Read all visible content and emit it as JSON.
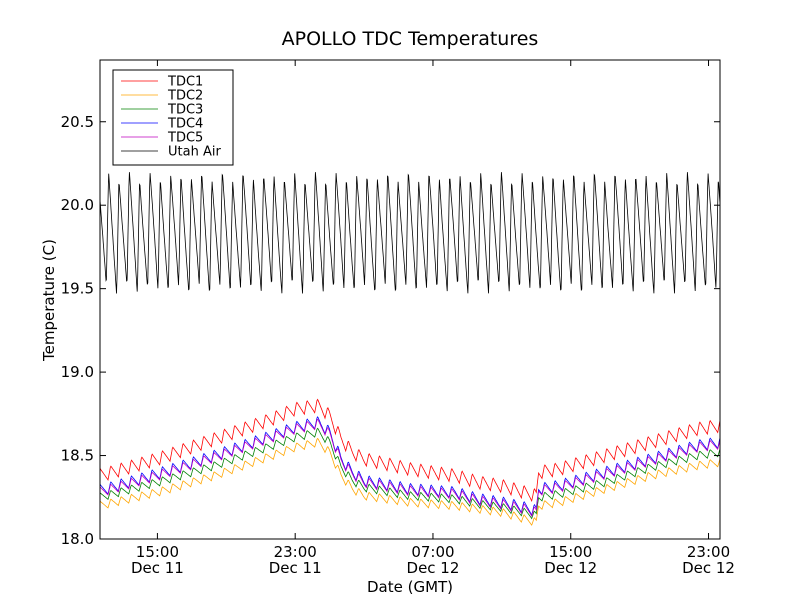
{
  "chart_data": {
    "type": "line",
    "title": "APOLLO TDC Temperatures",
    "xlabel": "Date (GMT)",
    "ylabel": "Temperature (C)",
    "xlim": [
      0,
      54
    ],
    "ylim": [
      18.0,
      20.87
    ],
    "yticks": [
      {
        "value": 18.0,
        "label": "18.0"
      },
      {
        "value": 18.5,
        "label": "18.5"
      },
      {
        "value": 19.0,
        "label": "19.0"
      },
      {
        "value": 19.5,
        "label": "19.5"
      },
      {
        "value": 20.0,
        "label": "20.0"
      },
      {
        "value": 20.5,
        "label": "20.5"
      }
    ],
    "xticks": [
      {
        "value": 5.0,
        "time": "15:00",
        "date": "Dec 11"
      },
      {
        "value": 17.0,
        "time": "23:00",
        "date": "Dec 11"
      },
      {
        "value": 29.0,
        "time": "07:00",
        "date": "Dec 12"
      },
      {
        "value": 41.0,
        "time": "15:00",
        "date": "Dec 12"
      },
      {
        "value": 53.0,
        "time": "23:00",
        "date": "Dec 12"
      }
    ],
    "legend_position": "top-left",
    "series": [
      {
        "name": "TDC1",
        "color": "#ff0000",
        "x": [
          0,
          5,
          10,
          15,
          17,
          19,
          20,
          21,
          22,
          23,
          27,
          31,
          33,
          35,
          37,
          38,
          38.2,
          40,
          44,
          48,
          52,
          54
        ],
        "y": [
          18.38,
          18.48,
          18.6,
          18.72,
          18.78,
          18.8,
          18.74,
          18.6,
          18.52,
          18.48,
          18.42,
          18.38,
          18.34,
          18.32,
          18.28,
          18.26,
          18.4,
          18.42,
          18.5,
          18.58,
          18.66,
          18.68
        ],
        "ripple": 0.08
      },
      {
        "name": "TDC2",
        "color": "#ffa500",
        "x": [
          0,
          5,
          10,
          15,
          17,
          19,
          20,
          21,
          22,
          23,
          27,
          31,
          33,
          35,
          37,
          38,
          38.2,
          40,
          44,
          48,
          52,
          54
        ],
        "y": [
          18.2,
          18.28,
          18.38,
          18.5,
          18.55,
          18.58,
          18.52,
          18.38,
          18.3,
          18.26,
          18.22,
          18.2,
          18.18,
          18.16,
          18.12,
          18.1,
          18.2,
          18.22,
          18.3,
          18.38,
          18.44,
          18.46
        ],
        "ripple": 0.05
      },
      {
        "name": "TDC3",
        "color": "#008000",
        "x": [
          0,
          5,
          10,
          15,
          17,
          19,
          20,
          21,
          22,
          23,
          27,
          31,
          33,
          35,
          37,
          38,
          38.2,
          40,
          44,
          48,
          52,
          54
        ],
        "y": [
          18.25,
          18.34,
          18.44,
          18.56,
          18.61,
          18.64,
          18.58,
          18.43,
          18.35,
          18.31,
          18.26,
          18.24,
          18.21,
          18.19,
          18.16,
          18.14,
          18.25,
          18.27,
          18.34,
          18.43,
          18.5,
          18.52
        ],
        "ripple": 0.05
      },
      {
        "name": "TDC4",
        "color": "#0000ff",
        "x": [
          0,
          5,
          10,
          15,
          17,
          19,
          20,
          21,
          22,
          23,
          27,
          31,
          33,
          35,
          37,
          38,
          38.2,
          40,
          44,
          48,
          52,
          54
        ],
        "y": [
          18.29,
          18.39,
          18.5,
          18.62,
          18.67,
          18.7,
          18.64,
          18.48,
          18.4,
          18.35,
          18.3,
          18.28,
          18.24,
          18.22,
          18.19,
          18.17,
          18.3,
          18.32,
          18.4,
          18.48,
          18.56,
          18.58
        ],
        "ripple": 0.07
      },
      {
        "name": "TDC5",
        "color": "#bf00bf",
        "x": [
          0,
          5,
          10,
          15,
          17,
          19,
          20,
          21,
          22,
          23,
          27,
          31,
          33,
          35,
          37,
          38,
          38.2,
          40,
          44,
          48,
          52,
          54
        ],
        "y": [
          18.28,
          18.38,
          18.49,
          18.61,
          18.66,
          18.69,
          18.63,
          18.47,
          18.39,
          18.34,
          18.29,
          18.27,
          18.23,
          18.21,
          18.18,
          18.16,
          18.29,
          18.31,
          18.39,
          18.47,
          18.55,
          18.57
        ],
        "ripple": 0.06
      },
      {
        "name": "Utah Air",
        "color": "#000000",
        "x": [
          0,
          54
        ],
        "y": [
          19.85,
          19.85
        ],
        "oscillation": {
          "min": 19.49,
          "max": 20.18,
          "period_hours": 0.9
        }
      }
    ]
  }
}
